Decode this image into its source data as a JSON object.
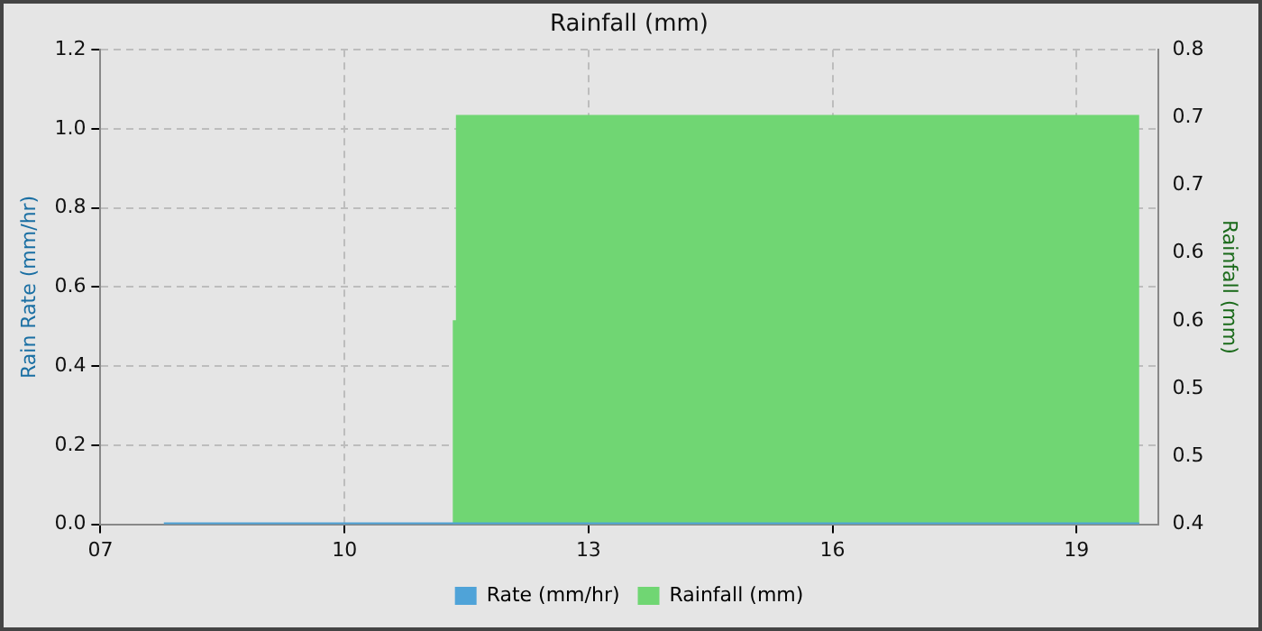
{
  "chart_data": {
    "type": "line",
    "title": "Rainfall (mm)",
    "ylabel": "Rain Rate (mm/hr)",
    "y2label": "Rainfall (mm)",
    "xlim": [
      7,
      20
    ],
    "xticks": [
      {
        "value": 7,
        "label": "07"
      },
      10,
      13,
      16,
      19
    ],
    "ylim": [
      0,
      1.2
    ],
    "yticks": [
      {
        "value": 0,
        "label": "0.0"
      },
      0.2,
      0.4,
      0.6,
      0.8,
      {
        "value": 1,
        "label": "1.0"
      },
      1.2
    ],
    "y2lim": [
      0.4,
      0.8
    ],
    "y2ticks": [
      0.4,
      {
        "value": 0.457,
        "label": "0.5"
      },
      {
        "value": 0.514,
        "label": "0.5"
      },
      {
        "value": 0.571,
        "label": "0.6"
      },
      {
        "value": 0.629,
        "label": "0.6"
      },
      {
        "value": 0.686,
        "label": "0.7"
      },
      {
        "value": 0.743,
        "label": "0.7"
      },
      0.8
    ],
    "series": [
      {
        "name": "Rate (mm/hr)",
        "color": "#4fa3d8",
        "x": [
          7.78,
          19.77
        ],
        "values": [
          0,
          0
        ]
      },
      {
        "name": "Rainfall (mm)",
        "type": "area",
        "axis": "y2",
        "color": "#70d673",
        "x": [
          11.33,
          11.36,
          11.37,
          19.77
        ],
        "values": [
          0.572,
          0.572,
          0.745,
          0.745
        ]
      }
    ],
    "grid": true,
    "legend": "bottom",
    "marker": "none",
    "line_style": "solid"
  }
}
